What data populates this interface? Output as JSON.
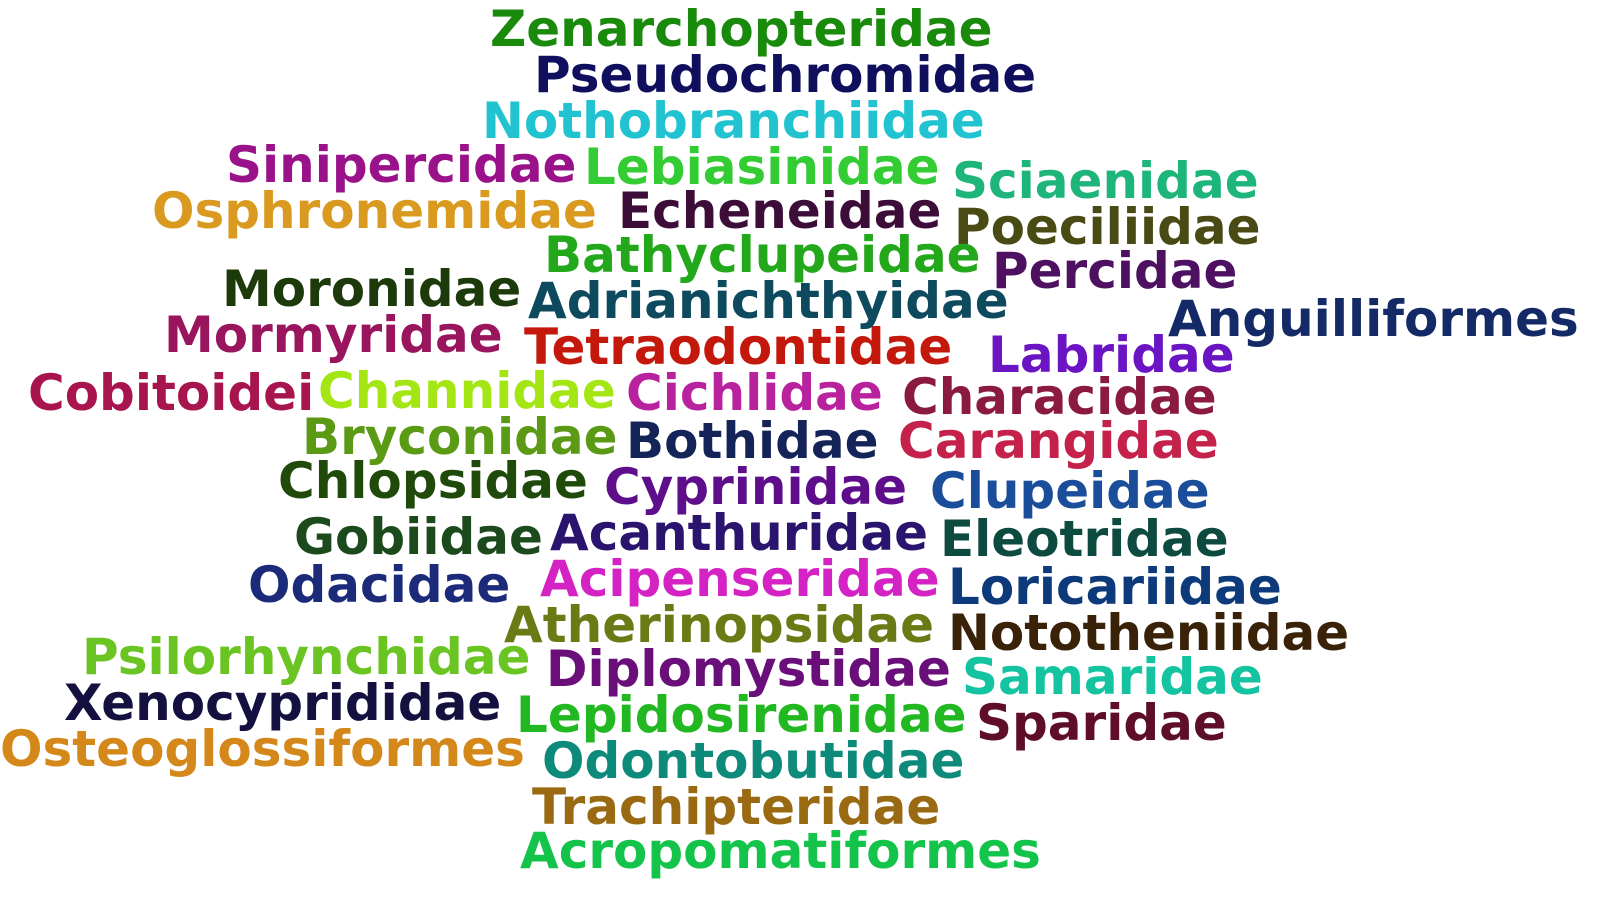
{
  "words": [
    {
      "text": "Zenarchopteridae",
      "color": "#1a8a0c"
    },
    {
      "text": "Pseudochromidae",
      "color": "#0f0f5e"
    },
    {
      "text": "Nothobranchiidae",
      "color": "#22c3d0"
    },
    {
      "text": "Sinipercidae",
      "color": "#9a128a"
    },
    {
      "text": "Lebiasinidae",
      "color": "#33cc33"
    },
    {
      "text": "Sciaenidae",
      "color": "#1db57a"
    },
    {
      "text": "Osphronemidae",
      "color": "#d99a1f"
    },
    {
      "text": "Echeneidae",
      "color": "#3d0d3a"
    },
    {
      "text": "Poeciliidae",
      "color": "#4a4a14"
    },
    {
      "text": "Bathyclupeidae",
      "color": "#22a81a"
    },
    {
      "text": "Percidae",
      "color": "#4e1060"
    },
    {
      "text": "Moronidae",
      "color": "#1c3a0a"
    },
    {
      "text": "Adrianichthyidae",
      "color": "#0d4a5e"
    },
    {
      "text": "Anguilliformes",
      "color": "#142a66"
    },
    {
      "text": "Mormyridae",
      "color": "#99155e"
    },
    {
      "text": "Tetraodontidae",
      "color": "#c4180c"
    },
    {
      "text": "Labridae",
      "color": "#6a14c4"
    },
    {
      "text": "Cobitoidei",
      "color": "#a8144e"
    },
    {
      "text": "Channidae",
      "color": "#a4e614"
    },
    {
      "text": "Cichlidae",
      "color": "#b8229e"
    },
    {
      "text": "Characidae",
      "color": "#8a1a40"
    },
    {
      "text": "Bryconidae",
      "color": "#5a9a14"
    },
    {
      "text": "Bothidae",
      "color": "#142458"
    },
    {
      "text": "Carangidae",
      "color": "#c4224a"
    },
    {
      "text": "Chlopsidae",
      "color": "#1f4a0a"
    },
    {
      "text": "Cyprinidae",
      "color": "#5e0e8a"
    },
    {
      "text": "Clupeidae",
      "color": "#1a4e9a"
    },
    {
      "text": "Gobiidae",
      "color": "#1c4a1c"
    },
    {
      "text": "Acanthuridae",
      "color": "#2a146e"
    },
    {
      "text": "Eleotridae",
      "color": "#0d4a40"
    },
    {
      "text": "Odacidae",
      "color": "#1c2a7a"
    },
    {
      "text": "Acipenseridae",
      "color": "#d422c4"
    },
    {
      "text": "Loricariidae",
      "color": "#0d3a7a"
    },
    {
      "text": "Atherinopsidae",
      "color": "#6a7a14"
    },
    {
      "text": "Nototheniidae",
      "color": "#3a2208"
    },
    {
      "text": "Psilorhynchidae",
      "color": "#6ac422"
    },
    {
      "text": "Diplomystidae",
      "color": "#6a0e7a"
    },
    {
      "text": "Samaridae",
      "color": "#14c4a0"
    },
    {
      "text": "Xenocyprididae",
      "color": "#141040"
    },
    {
      "text": "Lepidosirenidae",
      "color": "#22b822"
    },
    {
      "text": "Sparidae",
      "color": "#5e0e2a"
    },
    {
      "text": "Osteoglossiformes",
      "color": "#d4881a"
    },
    {
      "text": "Odontobutidae",
      "color": "#0e8a7a"
    },
    {
      "text": "Trachipteridae",
      "color": "#9a6a12"
    },
    {
      "text": "Acropomatiformes",
      "color": "#14c44a"
    }
  ]
}
